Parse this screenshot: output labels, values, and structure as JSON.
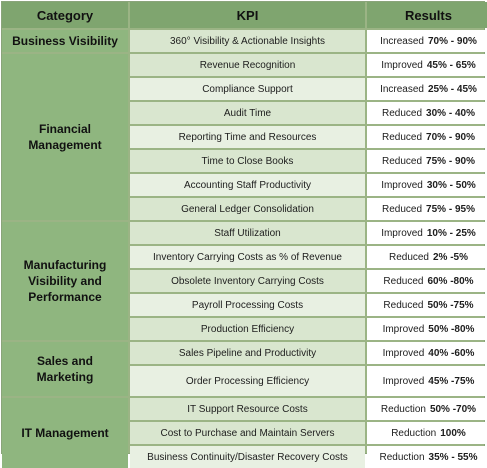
{
  "headers": {
    "category": "Category",
    "kpi": "KPI",
    "results": "Results"
  },
  "categories": [
    "Business Visibility",
    "Financial\nManagement",
    "Manufacturing\nVisibility and\nPerformance",
    "Sales and\nMarketing",
    "IT Management"
  ],
  "rows": [
    {
      "kpi": "360° Visibility & Actionable Insights",
      "result_label": "Increased",
      "result_value": "70% - 90%"
    },
    {
      "kpi": "Revenue Recognition",
      "result_label": "Improved",
      "result_value": "45% - 65%"
    },
    {
      "kpi": "Compliance Support",
      "result_label": "Increased",
      "result_value": "25% - 45%"
    },
    {
      "kpi": "Audit Time",
      "result_label": "Reduced",
      "result_value": "30% - 40%"
    },
    {
      "kpi": "Reporting Time and Resources",
      "result_label": "Reduced",
      "result_value": "70% - 90%"
    },
    {
      "kpi": "Time to Close Books",
      "result_label": "Reduced",
      "result_value": "75% - 90%"
    },
    {
      "kpi": "Accounting Staff Productivity",
      "result_label": "Improved",
      "result_value": "30% - 50%"
    },
    {
      "kpi": "General Ledger Consolidation",
      "result_label": "Reduced",
      "result_value": "75% - 95%"
    },
    {
      "kpi": "Staff Utilization",
      "result_label": "Improved",
      "result_value": "10% - 25%"
    },
    {
      "kpi": "Inventory Carrying Costs as % of Revenue",
      "result_label": "Reduced",
      "result_value": "2% -5%"
    },
    {
      "kpi": "Obsolete Inventory Carrying Costs",
      "result_label": "Reduced",
      "result_value": "60% -80%"
    },
    {
      "kpi": "Payroll Processing Costs",
      "result_label": "Reduced",
      "result_value": "50% -75%"
    },
    {
      "kpi": "Production Efficiency",
      "result_label": "Improved",
      "result_value": "50% -80%"
    },
    {
      "kpi": "Sales Pipeline and Productivity",
      "result_label": "Improved",
      "result_value": "40% -60%"
    },
    {
      "kpi": "Order Processing Efficiency",
      "result_label": "Improved",
      "result_value": "45% -75%"
    },
    {
      "kpi": "IT Support Resource Costs",
      "result_label": "Reduction",
      "result_value": "50% -70%"
    },
    {
      "kpi": "Cost to Purchase and Maintain Servers",
      "result_label": "Reduction",
      "result_value": "100%"
    },
    {
      "kpi": "Business Continuity/Disaster Recovery Costs",
      "result_label": "Reduction",
      "result_value": "35% - 55%"
    }
  ]
}
